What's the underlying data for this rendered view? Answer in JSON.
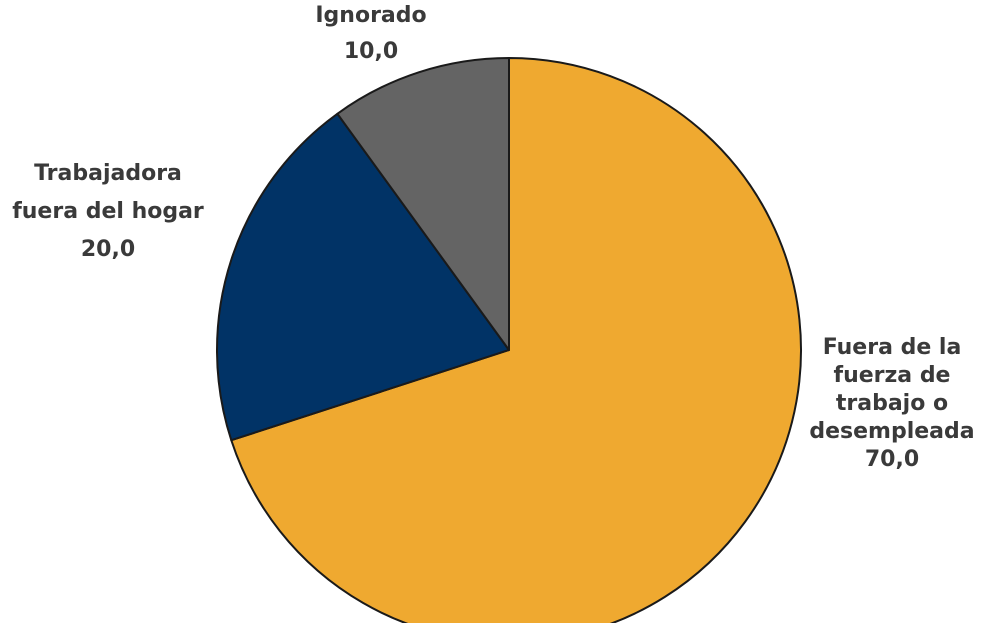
{
  "chart_data": {
    "type": "pie",
    "start_angle_deg": 0,
    "direction": "clockwise",
    "slices": [
      {
        "category": "Fuera de la fuerza de trabajo o desempleada",
        "label_lines": [
          "Fuera de la",
          "fuerza de",
          "trabajo o",
          "desempleada"
        ],
        "value": 70.0,
        "value_label": "70,0",
        "color": "#EFA930"
      },
      {
        "category": "Trabajadora fuera del hogar",
        "label_lines": [
          "Trabajadora",
          "fuera del hogar"
        ],
        "value": 20.0,
        "value_label": "20,0",
        "color": "#013366"
      },
      {
        "category": "Ignorado",
        "label_lines": [
          "Ignorado"
        ],
        "value": 10.0,
        "value_label": "10,0",
        "color": "#646464"
      }
    ]
  }
}
